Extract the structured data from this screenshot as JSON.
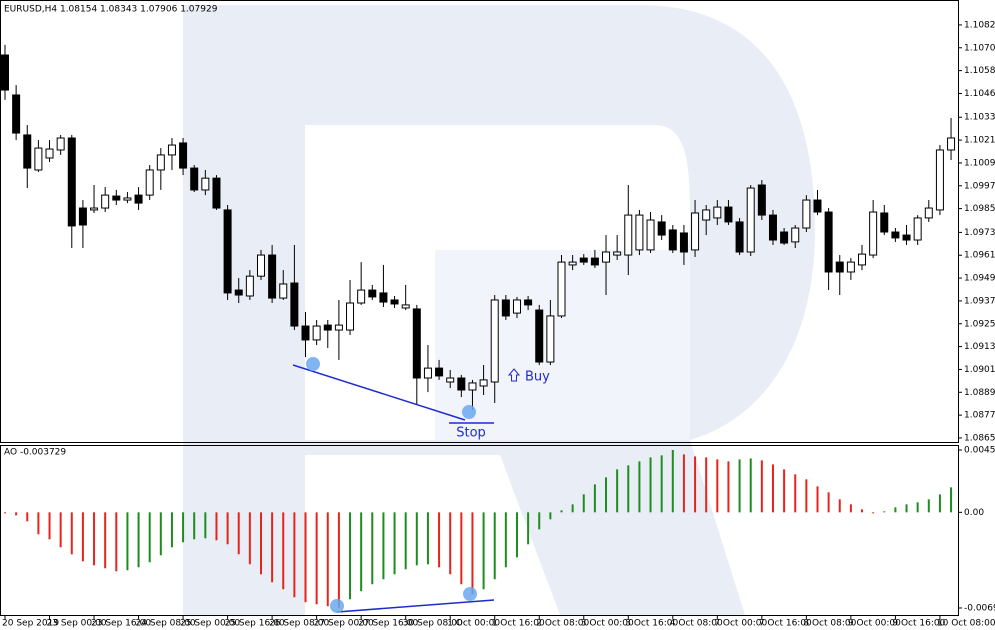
{
  "chart_data": [
    {
      "type": "candlestick",
      "title": "EURUSD,H4  1.08154 1.08343 1.07906 1.07929",
      "up_color": "#ffffff",
      "down_color": "#000000",
      "ylim": [
        1.08634,
        1.1093
      ],
      "yticks": [
        {
          "value": 1.1082,
          "label": "1.10820"
        },
        {
          "value": 1.107,
          "label": "1.10700"
        },
        {
          "value": 1.1058,
          "label": "1.10580"
        },
        {
          "value": 1.1046,
          "label": "1.10460"
        },
        1.10335,
        1.10215,
        1.10095,
        1.09975,
        1.09855,
        {
          "value": 1.0973,
          "label": "1.09730"
        },
        {
          "value": 1.0961,
          "label": "1.09610"
        },
        {
          "value": 1.0949,
          "label": "1.09490"
        },
        {
          "value": 1.0937,
          "label": "1.09370"
        },
        {
          "value": 1.0925,
          "label": "1.09250"
        },
        {
          "value": 1.0913,
          "label": "1.09130"
        },
        {
          "value": 1.0901,
          "label": "1.09010"
        },
        {
          "value": 1.0889,
          "label": "1.08890"
        },
        {
          "value": 1.0877,
          "label": "1.08770"
        },
        {
          "value": 1.0865,
          "label": "1.08650"
        }
      ],
      "annotations": [
        "Buy",
        "Stop"
      ],
      "open": [
        1.10662,
        1.10452,
        1.10242,
        1.10058,
        1.10121,
        1.10163,
        1.10226,
        1.09858,
        1.09848,
        1.09858,
        1.09921,
        1.099,
        1.09926,
        1.09926,
        1.10058,
        1.10137,
        1.102,
        1.10068,
        1.09953,
        1.10015,
        1.09848,
        1.09427,
        1.09396,
        1.095,
        1.09611,
        1.09385,
        1.09464,
        1.09238,
        1.09165,
        1.09243,
        1.09217,
        1.09217,
        1.09359,
        1.09427,
        1.09412,
        1.09375,
        1.09333,
        1.09328,
        1.08965,
        1.09017,
        1.08944,
        1.08965,
        1.08902,
        1.08923,
        1.08944,
        1.09375,
        1.09306,
        1.09375,
        1.09322,
        1.09049,
        1.09291,
        1.09559,
        1.09595,
        1.09595,
        1.09574,
        1.09611,
        1.09611,
        1.09638,
        1.09638,
        1.09785,
        1.09743,
        1.09727,
        1.09638,
        1.09795,
        1.09806,
        1.09863,
        1.09785,
        1.09627,
        1.09979,
        1.09821,
        1.09732,
        1.0968,
        1.09753,
        1.099,
        1.09837,
        1.09574,
        1.09522,
        1.09559,
        1.09611,
        1.09832,
        1.09732,
        1.09716,
        1.0969,
        1.09806,
        1.09848,
        1.10163
      ],
      "high": [
        1.10715,
        1.10504,
        1.10294,
        1.10215,
        1.10215,
        1.10242,
        1.10242,
        1.099,
        1.09979,
        1.09968,
        1.09953,
        1.09942,
        1.09968,
        1.10084,
        1.10173,
        1.10226,
        1.10226,
        1.10084,
        1.10058,
        1.10031,
        1.09874,
        1.0949,
        1.09532,
        1.09638,
        1.09664,
        1.09532,
        1.09664,
        1.09312,
        1.0927,
        1.0927,
        1.09375,
        1.0948,
        1.09574,
        1.09454,
        1.09559,
        1.09396,
        1.09454,
        1.09349,
        1.09138,
        1.0906,
        1.09007,
        1.08981,
        1.08955,
        1.09033,
        1.09401,
        1.09401,
        1.09391,
        1.09396,
        1.09349,
        1.09375,
        1.09611,
        1.09611,
        1.09616,
        1.09638,
        1.09716,
        1.09716,
        1.09979,
        1.09848,
        1.09837,
        1.09821,
        1.09769,
        1.09769,
        1.099,
        1.09874,
        1.099,
        1.099,
        1.09806,
        1.09979,
        1.10005,
        1.09848,
        1.09753,
        1.09769,
        1.09926,
        1.09953,
        1.09858,
        1.09611,
        1.09595,
        1.09664,
        1.099,
        1.09874,
        1.09753,
        1.09769,
        1.09821,
        1.099,
        1.10189,
        1.10331
      ],
      "low": [
        1.10426,
        1.10215,
        1.09963,
        1.10047,
        1.101,
        1.10137,
        1.09648,
        1.09648,
        1.09832,
        1.09837,
        1.09874,
        1.09884,
        1.09848,
        1.099,
        1.09953,
        1.10058,
        1.10031,
        1.09942,
        1.09926,
        1.09848,
        1.09375,
        1.09359,
        1.09375,
        1.0948,
        1.09359,
        1.09375,
        1.09217,
        1.09075,
        1.09138,
        1.09123,
        1.0906,
        1.09191,
        1.09349,
        1.09375,
        1.09338,
        1.09333,
        1.09322,
        1.08823,
        1.08891,
        1.08955,
        1.08912,
        1.08865,
        1.08797,
        1.08876,
        1.08834,
        1.0927,
        1.0928,
        1.09322,
        1.09033,
        1.09033,
        1.0928,
        1.09532,
        1.09559,
        1.09543,
        1.09401,
        1.09585,
        1.09506,
        1.09611,
        1.09622,
        1.0969,
        1.09622,
        1.09559,
        1.09601,
        1.09716,
        1.09769,
        1.09769,
        1.09611,
        1.09606,
        1.09795,
        1.09664,
        1.09664,
        1.09648,
        1.09732,
        1.09821,
        1.09427,
        1.09401,
        1.0948,
        1.09532,
        1.09595,
        1.09716,
        1.0968,
        1.09664,
        1.09664,
        1.09785,
        1.09821,
        1.1011
      ],
      "close": [
        1.10478,
        1.10252,
        1.10068,
        1.10173,
        1.10168,
        1.10226,
        1.09764,
        1.09769,
        1.09858,
        1.09926,
        1.099,
        1.09911,
        1.09884,
        1.10058,
        1.10137,
        1.10189,
        1.10068,
        1.09953,
        1.10015,
        1.09858,
        1.09412,
        1.09401,
        1.095,
        1.09611,
        1.09385,
        1.09459,
        1.09238,
        1.09165,
        1.09238,
        1.09217,
        1.09243,
        1.09359,
        1.09427,
        1.09391,
        1.09364,
        1.09354,
        1.09349,
        1.08965,
        1.09017,
        1.08976,
        1.08965,
        1.08902,
        1.08939,
        1.08955,
        1.09375,
        1.09291,
        1.09375,
        1.09349,
        1.09049,
        1.09291,
        1.09574,
        1.09574,
        1.09574,
        1.09559,
        1.09627,
        1.09627,
        1.09821,
        1.09821,
        1.09795,
        1.09716,
        1.09638,
        1.09627,
        1.09832,
        1.09848,
        1.09863,
        1.09785,
        1.09627,
        1.09963,
        1.09821,
        1.0969,
        1.09674,
        1.09753,
        1.099,
        1.09837,
        1.09522,
        1.09522,
        1.09574,
        1.09616,
        1.09837,
        1.09732,
        1.09701,
        1.0969,
        1.09806,
        1.09858,
        1.10163,
        1.10226
      ]
    },
    {
      "type": "bar",
      "title": "AO -0.003729",
      "up_color": "#1e8c1e",
      "down_color": "#e8231b",
      "ylim": [
        -0.00746,
        0.00482
      ],
      "yticks": [
        0.004528,
        {
          "value": 0,
          "label": "0.00"
        },
        -0.006949
      ],
      "categories": [
        "20 Sep 2019",
        null,
        null,
        null,
        "23 Sep 00:00",
        null,
        null,
        null,
        "23 Sep 16:00",
        null,
        null,
        null,
        "24 Sep 08:00",
        null,
        null,
        null,
        "25 Sep 00:00",
        null,
        null,
        null,
        "25 Sep 16:00",
        null,
        null,
        null,
        "26 Sep 08:00",
        null,
        null,
        null,
        "27 Sep 00:00",
        null,
        null,
        null,
        "27 Sep 16:00",
        null,
        null,
        null,
        "30 Sep 08:00",
        null,
        null,
        null,
        "1 Oct 00:00",
        null,
        null,
        null,
        "1 Oct 16:00",
        null,
        null,
        null,
        "2 Oct 08:00",
        null,
        null,
        null,
        "3 Oct 00:00",
        null,
        null,
        null,
        "3 Oct 16:00",
        null,
        null,
        null,
        "4 Oct 08:00",
        null,
        null,
        null,
        "7 Oct 00:00",
        null,
        null,
        null,
        "7 Oct 16:00",
        null,
        null,
        null,
        "8 Oct 08:00",
        null,
        null,
        null,
        "9 Oct 00:00",
        null,
        null,
        null,
        "9 Oct 16:00",
        null,
        null,
        null,
        "10 Oct 08:00",
        null
      ],
      "values": [
        -7.3e-05,
        -0.000218,
        -0.000653,
        -0.001597,
        -0.00196,
        -0.002541,
        -0.003049,
        -0.003557,
        -0.003848,
        -0.004066,
        -0.004283,
        -0.004211,
        -0.003993,
        -0.00363,
        -0.003122,
        -0.002541,
        -0.002178,
        -0.00196,
        -0.001888,
        -0.002033,
        -0.002323,
        -0.003049,
        -0.003775,
        -0.004501,
        -0.005082,
        -0.00559,
        -0.006171,
        -0.006534,
        -0.006679,
        -0.006824,
        -0.006949,
        -0.006316,
        -0.005735,
        -0.005227,
        -0.004864,
        -0.004501,
        -0.004138,
        -0.003848,
        -0.003775,
        -0.003993,
        -0.004501,
        -0.005227,
        -0.005953,
        -0.00559,
        -0.004864,
        -0.003993,
        -0.003267,
        -0.002323,
        -0.001234,
        -0.000508,
        0.000145,
        0.000581,
        0.001307,
        0.002033,
        0.002541,
        0.003122,
        0.003412,
        0.003703,
        0.003993,
        0.004138,
        0.004528,
        0.004211,
        0.004066,
        0.003993,
        0.003848,
        0.003703,
        0.003848,
        0.00392,
        0.003775,
        0.003485,
        0.003122,
        0.002759,
        0.002396,
        0.001888,
        0.001452,
        0.000944,
        0.000581,
        0.000218,
        -7.3e-05,
        7.3e-05,
        0.000363,
        0.000581,
        0.000726,
        0.000944,
        0.001307,
        0.001815
      ]
    }
  ]
}
